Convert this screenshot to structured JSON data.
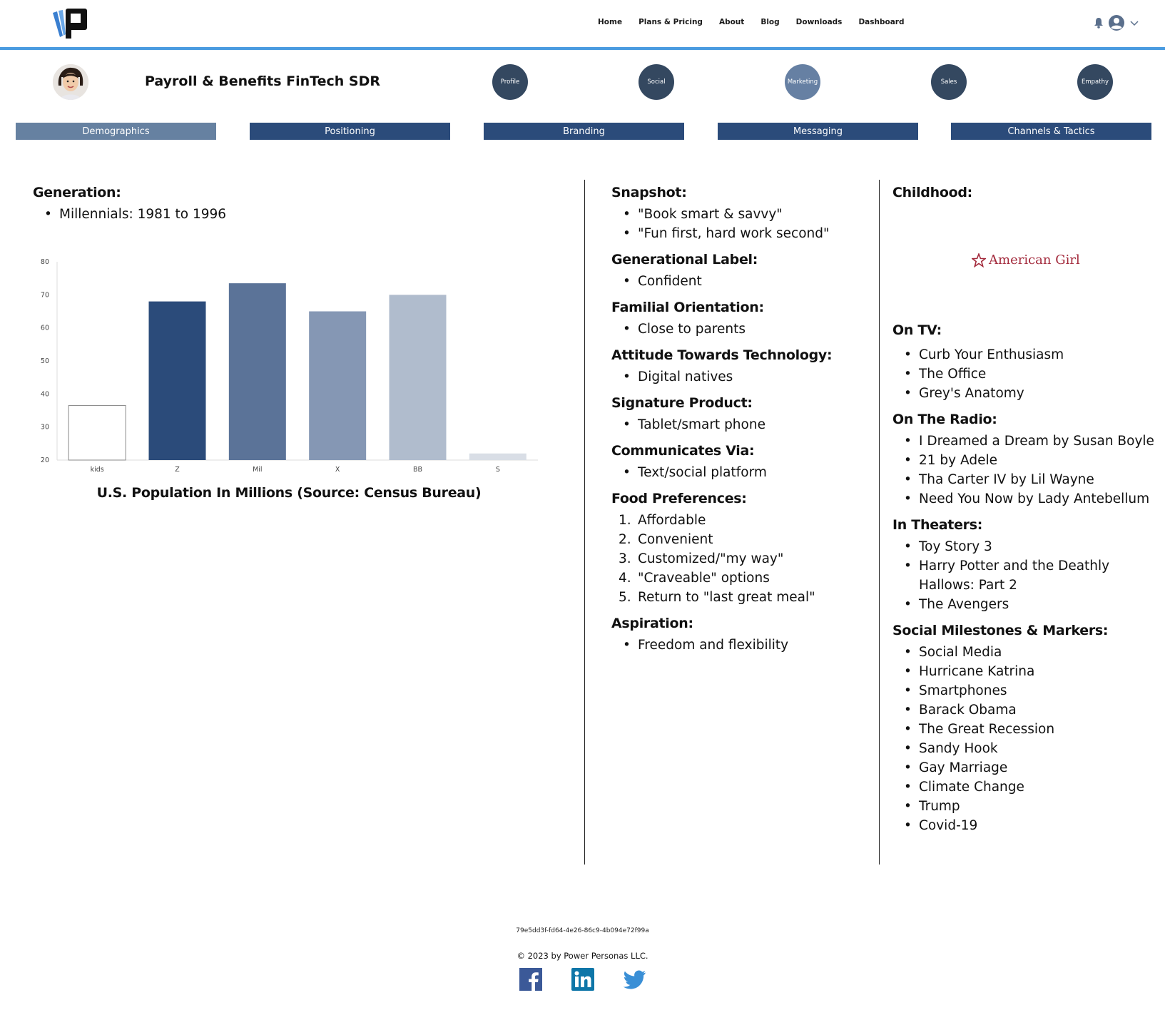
{
  "nav": {
    "items": [
      "Home",
      "Plans & Pricing",
      "About",
      "Blog",
      "Downloads",
      "Dashboard"
    ]
  },
  "persona": {
    "title": "Payroll & Benefits FinTech SDR"
  },
  "circles": [
    "Profile",
    "Social",
    "Marketing",
    "Sales",
    "Empathy"
  ],
  "tabs": [
    "Demographics",
    "Positioning",
    "Branding",
    "Messaging",
    "Channels & Tactics"
  ],
  "left": {
    "generation_heading": "Generation:",
    "generation_items": [
      "Millennials: 1981 to 1996"
    ]
  },
  "chart_data": {
    "type": "bar",
    "categories": [
      "kids",
      "Z",
      "Mil",
      "X",
      "BB",
      "S"
    ],
    "values": [
      36.5,
      68,
      73.5,
      65,
      70,
      22
    ],
    "colors": [
      "#ffffff",
      "#2b4b7a",
      "#5b7398",
      "#8597b4",
      "#b0bccd",
      "#d9dee6"
    ],
    "title": "U.S. Population In Millions (Source: Census Bureau)",
    "ylim": [
      20,
      80
    ],
    "yticks": [
      "80",
      "70",
      "60",
      "50",
      "40",
      "30",
      "20"
    ]
  },
  "middle": {
    "snapshot_heading": "Snapshot:",
    "snapshot_items": [
      "\"Book smart & savvy\"",
      "\"Fun first, hard work second\""
    ],
    "label_heading": "Generational Label:",
    "label_items": [
      "Confident"
    ],
    "familial_heading": "Familial Orientation:",
    "familial_items": [
      "Close to parents"
    ],
    "tech_heading": "Attitude Towards Technology:",
    "tech_items": [
      "Digital natives"
    ],
    "product_heading": "Signature Product:",
    "product_items": [
      "Tablet/smart phone"
    ],
    "comm_heading": "Communicates Via:",
    "comm_items": [
      "Text/social platform"
    ],
    "food_heading": "Food Preferences:",
    "food_numbers": [
      "1.",
      "2.",
      "3.",
      "4.",
      "5."
    ],
    "food_items": [
      "Affordable",
      "Convenient",
      "Customized/\"my way\"",
      "\"Craveable\" options",
      "Return to \"last great meal\""
    ],
    "aspiration_heading": "Aspiration:",
    "aspiration_items": [
      "Freedom and flexibility"
    ]
  },
  "right": {
    "childhood_heading": "Childhood:",
    "childhood_logo": "American Girl",
    "tv_heading": "On TV:",
    "tv_items": [
      "Curb Your Enthusiasm",
      "The Office",
      "Grey's Anatomy"
    ],
    "radio_heading": "On The Radio:",
    "radio_items": [
      "I Dreamed a Dream by Susan Boyle",
      "21 by Adele",
      "Tha Carter IV by Lil Wayne",
      "Need You Now by Lady Antebellum"
    ],
    "theaters_heading": "In Theaters:",
    "theaters_items": [
      "Toy Story 3",
      "Harry Potter and the Deathly",
      "Hallows: Part 2",
      "The Avengers"
    ],
    "milestones_heading": "Social Milestones & Markers:",
    "milestones_items": [
      "Social Media",
      "Hurricane Katrina",
      "Smartphones",
      "Barack Obama",
      "The Great Recession",
      "Sandy Hook",
      "Gay Marriage",
      "Climate Change",
      "Trump",
      "Covid-19"
    ]
  },
  "footer": {
    "id": "79e5dd3f-fd64-4e26-86c9-4b094e72f99a",
    "copyright": "© 2023 by Power Personas LLC."
  },
  "colors": {
    "accent": "#4a9be0",
    "navy": "#2b4b7a",
    "tab_active": "#6681a1",
    "circle": "#344860",
    "circle_active": "#6680a3"
  }
}
